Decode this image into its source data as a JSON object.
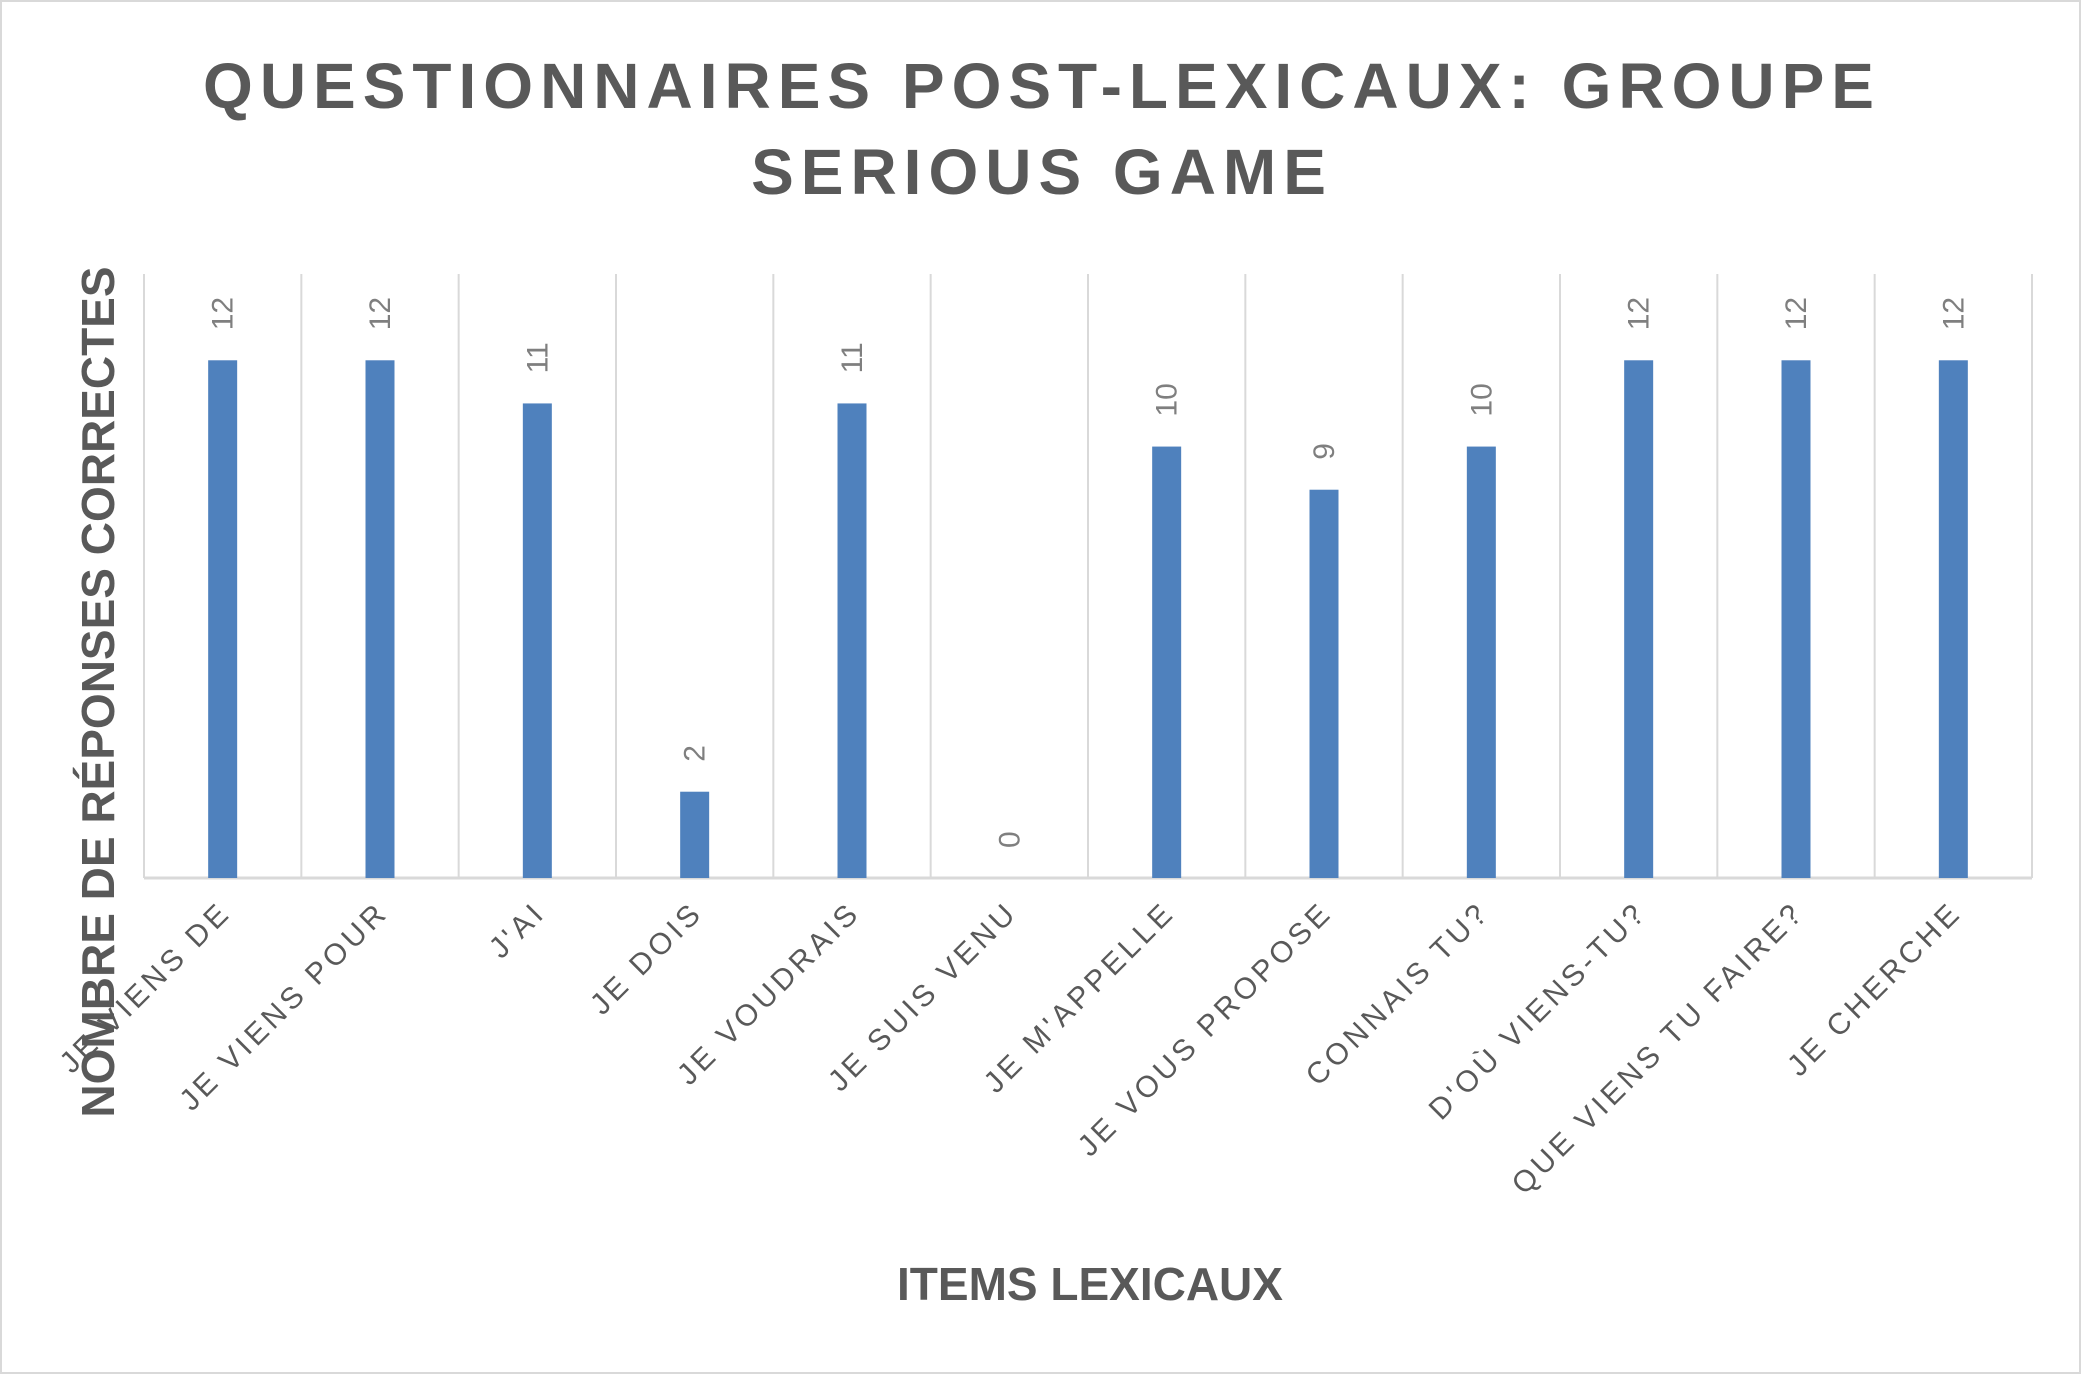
{
  "chart_data": {
    "type": "bar",
    "title": "QUESTIONNAIRES POST-LEXICAUX: GROUPE SERIOUS GAME",
    "title_lines": [
      "QUESTIONNAIRES POST-LEXICAUX: GROUPE",
      "SERIOUS GAME"
    ],
    "xlabel": "ITEMS LEXICAUX",
    "ylabel": "NOMBRE DE RÉPONSES CORRECTES",
    "categories": [
      "JE VIENS DE",
      "JE VIENS POUR",
      "J'AI",
      "JE DOIS",
      "JE VOUDRAIS",
      "JE SUIS VENU",
      "JE M'APPELLE",
      "JE VOUS PROPOSE",
      "CONNAIS TU?",
      "D'OÙ VIENS-TU?",
      "QUE VIENS TU FAIRE?",
      "JE CHERCHE"
    ],
    "values": [
      12,
      12,
      11,
      2,
      11,
      0,
      10,
      9,
      10,
      12,
      12,
      12
    ],
    "data_labels": true,
    "ylim": [
      0,
      14
    ],
    "grid": "vertical",
    "legend": "none",
    "bar_color": "#4f81bd",
    "grid_color": "#d9d9d9",
    "text_color": "#595959",
    "data_label_color": "#7f7f7f"
  }
}
